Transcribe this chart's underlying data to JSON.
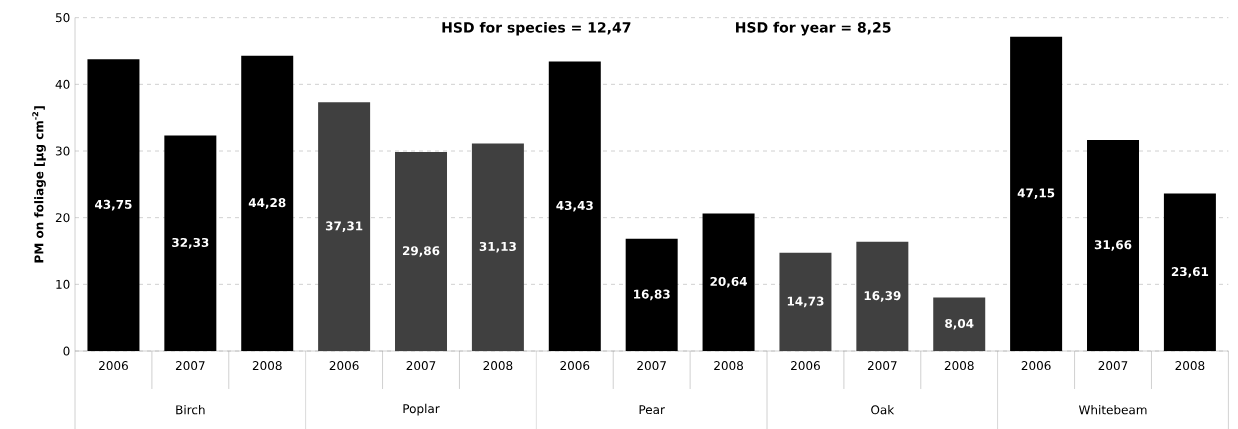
{
  "chart_data": {
    "type": "bar",
    "ylabel": "PM on foliage [µg cm$^{-2}$]",
    "categories": [
      "2006",
      "2007",
      "2008",
      "2006",
      "2007",
      "2008",
      "2006",
      "2007",
      "2008",
      "2006",
      "2007",
      "2008",
      "2006",
      "2007",
      "2008"
    ],
    "values": [
      43.75,
      32.33,
      44.28,
      37.31,
      29.86,
      31.13,
      43.43,
      16.83,
      20.64,
      14.73,
      16.39,
      8.04,
      47.15,
      31.66,
      23.61
    ],
    "value_labels": [
      "43,75",
      "32,33",
      "44,28",
      "37,31",
      "29,86",
      "31,13",
      "43,43",
      "16,83",
      "20,64",
      "14,73",
      "16,39",
      "8,04",
      "47,15",
      "31,66",
      "23,61"
    ],
    "colors": [
      "#000000",
      "#000000",
      "#000000",
      "#404040",
      "#404040",
      "#404040",
      "#000000",
      "#000000",
      "#000000",
      "#404040",
      "#404040",
      "#404040",
      "#000000",
      "#000000",
      "#000000"
    ],
    "annotations": [
      "HSD for species = 12,47",
      "HSD for year = 8,25",
      "Birch",
      "Poplar",
      "Pear",
      "Oak",
      "Whitebeam"
    ],
    "ylim": [
      0,
      50
    ],
    "yticks": [
      0,
      10,
      20,
      30,
      40,
      50
    ],
    "grid": "y"
  }
}
